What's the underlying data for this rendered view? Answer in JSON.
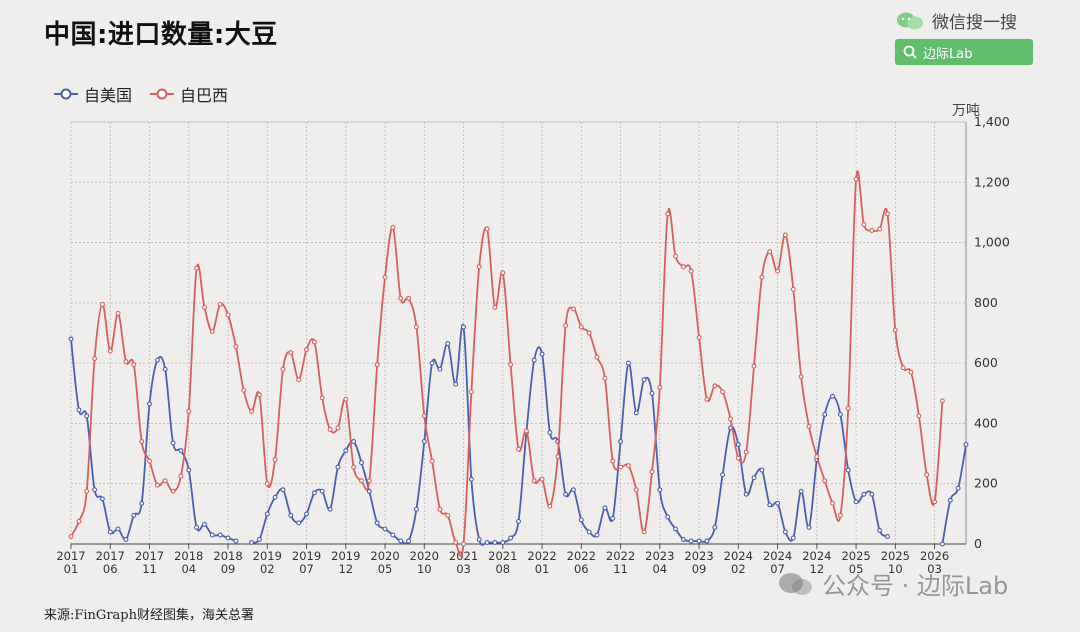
{
  "title": "中国:进口数量:大豆",
  "brand": {
    "search_engine_label": "微信搜一搜",
    "search_button_label": "边际Lab"
  },
  "watermark": {
    "text": "公众号 · 边际Lab"
  },
  "source": "来源:FinGraph财经图集，海关总署",
  "unit": "万吨",
  "colors": {
    "usa": "#4c5fae",
    "brazil": "#d95f5f",
    "wechat_green": "#5fbd6c"
  },
  "chart_data": {
    "type": "line",
    "y_axis_position": "right",
    "ylim": [
      0,
      1400
    ],
    "yticks": [
      "0",
      "200",
      "400",
      "600",
      "800",
      "1,000",
      "1,200",
      "1,400"
    ],
    "grid": true,
    "legend_position": "top-left",
    "x_tick_labels": [
      [
        "2017",
        "01"
      ],
      [
        "2017",
        "06"
      ],
      [
        "2017",
        "11"
      ],
      [
        "2018",
        "04"
      ],
      [
        "2018",
        "09"
      ],
      [
        "2019",
        "02"
      ],
      [
        "2019",
        "07"
      ],
      [
        "2019",
        "12"
      ],
      [
        "2020",
        "05"
      ],
      [
        "2020",
        "10"
      ],
      [
        "2021",
        "03"
      ],
      [
        "2021",
        "08"
      ],
      [
        "2022",
        "01"
      ],
      [
        "2022",
        "06"
      ],
      [
        "2022",
        "11"
      ],
      [
        "2023",
        "04"
      ],
      [
        "2023",
        "09"
      ],
      [
        "2024",
        "02"
      ],
      [
        "2024",
        "07"
      ],
      [
        "2024",
        "12"
      ],
      [
        "2025",
        "05"
      ],
      [
        "2025",
        "10"
      ],
      [
        "2026",
        "03"
      ]
    ],
    "start_year": 2017,
    "start_month": 1,
    "series": [
      {
        "name": "自美国",
        "color": "#4c5fae",
        "values": [
          680,
          445,
          425,
          180,
          150,
          40,
          50,
          15,
          95,
          135,
          465,
          610,
          580,
          335,
          310,
          245,
          55,
          65,
          30,
          30,
          20,
          10,
          null,
          5,
          15,
          100,
          155,
          180,
          95,
          70,
          100,
          170,
          175,
          115,
          255,
          310,
          340,
          270,
          175,
          70,
          50,
          30,
          10,
          10,
          115,
          340,
          600,
          580,
          665,
          530,
          720,
          215,
          15,
          5,
          5,
          5,
          20,
          75,
          370,
          610,
          630,
          370,
          340,
          165,
          180,
          80,
          40,
          30,
          120,
          85,
          340,
          600,
          435,
          545,
          500,
          180,
          90,
          50,
          15,
          10,
          10,
          10,
          55,
          230,
          385,
          330,
          165,
          220,
          245,
          130,
          135,
          40,
          20,
          175,
          55,
          280,
          430,
          490,
          430,
          245,
          140,
          165,
          165,
          45,
          25,
          null,
          null,
          null,
          null,
          null,
          null,
          0,
          145,
          185,
          330
        ]
      },
      {
        "name": "自巴西",
        "color": "#d95f5f",
        "values": [
          25,
          75,
          175,
          615,
          795,
          640,
          765,
          605,
          595,
          340,
          275,
          195,
          210,
          175,
          225,
          440,
          915,
          785,
          705,
          795,
          760,
          655,
          510,
          440,
          495,
          200,
          280,
          580,
          635,
          545,
          645,
          670,
          485,
          380,
          385,
          480,
          255,
          210,
          210,
          595,
          885,
          1050,
          815,
          815,
          720,
          425,
          275,
          115,
          95,
          5,
          0,
          505,
          920,
          1045,
          785,
          900,
          595,
          315,
          375,
          210,
          215,
          125,
          290,
          725,
          780,
          720,
          700,
          620,
          550,
          275,
          255,
          260,
          180,
          40,
          240,
          520,
          1095,
          955,
          920,
          905,
          685,
          480,
          525,
          505,
          415,
          285,
          305,
          590,
          885,
          970,
          905,
          1025,
          845,
          555,
          390,
          290,
          210,
          135,
          95,
          450,
          1210,
          1060,
          1040,
          1045,
          1095,
          710,
          585,
          570,
          425,
          230,
          140,
          475
        ]
      }
    ]
  }
}
